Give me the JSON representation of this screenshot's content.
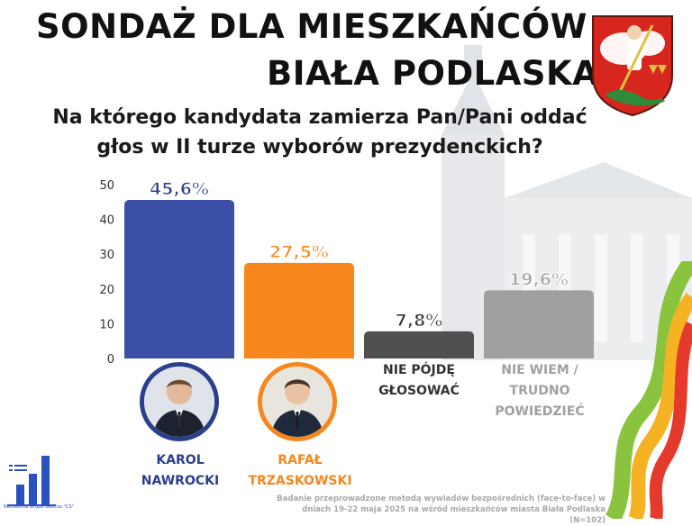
{
  "header": {
    "title_line1": "SONDAŻ DLA MIESZKAŃCÓW",
    "title_line2": "BIAŁA PODLASKA",
    "question": "Na którego kandydata zamierza Pan/Pani oddać głos w II turze wyborów prezydenckich?"
  },
  "chart_data": {
    "type": "bar",
    "categories": [
      "KAROL NAWROCKI",
      "RAFAŁ TRZASKOWSKI",
      "NIE PÓJDĘ GŁOSOWAĆ",
      "NIE WIEM / TRUDNO POWIEDZIEĆ"
    ],
    "values": [
      45.6,
      27.5,
      7.8,
      19.6
    ],
    "value_labels": [
      "45,6%",
      "27,5%",
      "7,8%",
      "19,6%"
    ],
    "colors": [
      "#3a4fa5",
      "#f7861c",
      "#505050",
      "#a0a0a0"
    ],
    "label_colors": [
      "#2c3f8f",
      "#f7861c",
      "#333333",
      "#a0a0a0"
    ],
    "ylim": [
      0,
      50
    ],
    "yticks": [
      0,
      10,
      20,
      30,
      40,
      50
    ],
    "ytick_labels": [
      "0",
      "10",
      "20",
      "30",
      "40",
      "50"
    ],
    "grid": false,
    "xlabel": "",
    "ylabel": ""
  },
  "candidates": {
    "karol": {
      "line1": "KAROL",
      "line2": "NAWROCKI",
      "ring_color": "#2c3f8f"
    },
    "rafal": {
      "line1": "RAFAŁ",
      "line2": "TRZASKOWSKI",
      "ring_color": "#f7861c"
    }
  },
  "other_options": {
    "no_vote": {
      "line1": "NIE PÓJDĘ",
      "line2": "GŁOSOWAĆ"
    },
    "dont_know": {
      "line1": "NIE WIEM /",
      "line2": "TRUDNO",
      "line3": "POWIEDZIEĆ"
    }
  },
  "footer": {
    "logo_text": "Niezależna Grupa Śledcza \"CS\"",
    "note_line1": "Badanie przeprowadzone metodą wywiadów bezpośrednich (face-to-face) w",
    "note_line2": "dniach 19-22 maja 2025 na wśród mieszkańców miasta Biała Podlaska (N=102)"
  },
  "icons": {
    "crest": "coat-of-arms-icon",
    "logo": "bar-chart-logo-icon",
    "avatar": "person-avatar-icon"
  }
}
